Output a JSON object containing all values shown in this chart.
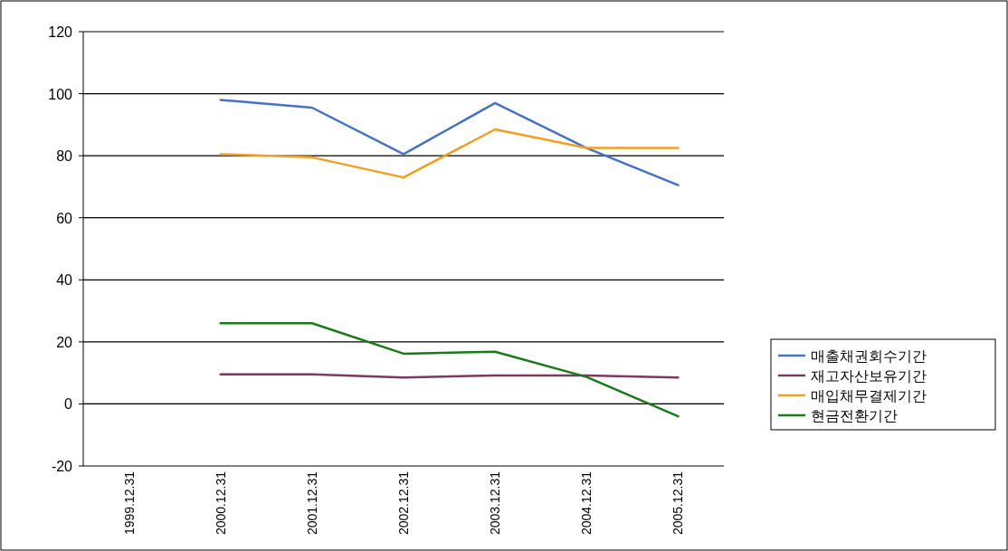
{
  "chart_data": {
    "type": "line",
    "categories": [
      "1999.12.31",
      "2000.12.31",
      "2001.12.31",
      "2002.12.31",
      "2003.12.31",
      "2004.12.31",
      "2005.12.31"
    ],
    "series": [
      {
        "name": "매출채권회수기간",
        "color": "#4472c4",
        "values": [
          null,
          98,
          95.5,
          80.5,
          97,
          82.5,
          70.5
        ]
      },
      {
        "name": "재고자산보유기간",
        "color": "#7b3a5e",
        "values": [
          null,
          9.5,
          9.5,
          8.5,
          9.2,
          9.2,
          8.5
        ]
      },
      {
        "name": "매입채무결제기간",
        "color": "#f0a020",
        "values": [
          null,
          80.5,
          79.5,
          73,
          88.5,
          82.5,
          82.5
        ]
      },
      {
        "name": "현금전환기간",
        "color": "#1a7a1a",
        "values": [
          null,
          26,
          26,
          16.2,
          16.8,
          8.7,
          -4
        ]
      }
    ],
    "ylim": [
      -20,
      120
    ],
    "yticks": [
      -20,
      0,
      20,
      40,
      60,
      80,
      100,
      120
    ],
    "grid": "y",
    "legend": "right"
  }
}
